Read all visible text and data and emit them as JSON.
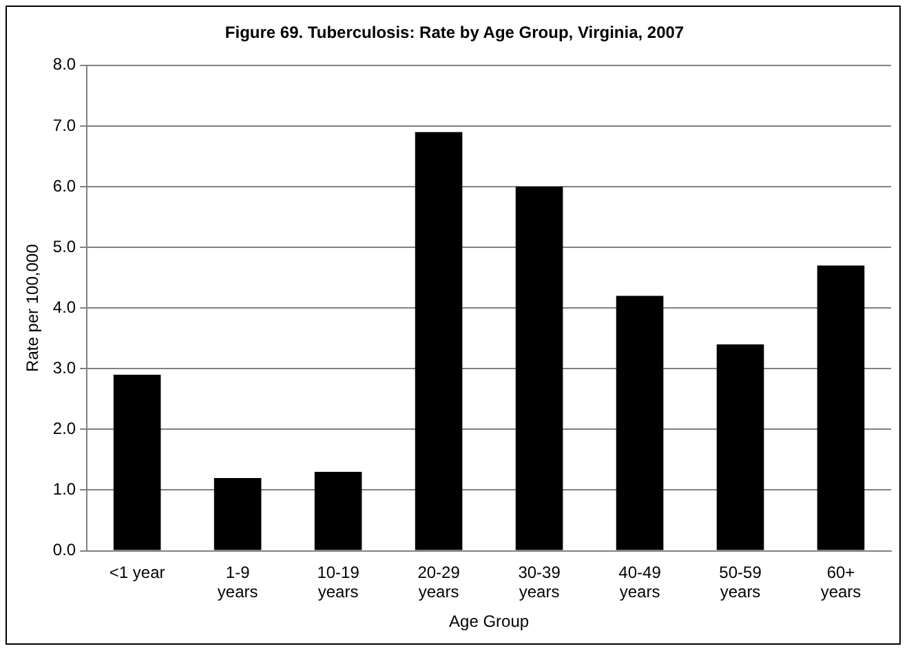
{
  "chart_data": {
    "type": "bar",
    "title": "Figure 69. Tuberculosis: Rate by Age Group, Virginia, 2007",
    "xlabel": "Age Group",
    "ylabel": "Rate per 100,000",
    "categories": [
      "<1 year",
      "1-9 years",
      "10-19 years",
      "20-29 years",
      "30-39 years",
      "40-49 years",
      "50-59 years",
      "60+ years"
    ],
    "values": [
      2.9,
      1.2,
      1.3,
      6.9,
      6.0,
      4.2,
      3.4,
      4.7
    ],
    "color": "#000000",
    "ylim": [
      0,
      8
    ],
    "yticks": [
      {
        "value": 0,
        "label": "0.0"
      },
      {
        "value": 1,
        "label": "1.0"
      },
      {
        "value": 2,
        "label": "2.0"
      },
      {
        "value": 3,
        "label": "3.0"
      },
      {
        "value": 4,
        "label": "4.0"
      },
      {
        "value": 5,
        "label": "5.0"
      },
      {
        "value": 6,
        "label": "6.0"
      },
      {
        "value": 7,
        "label": "7.0"
      },
      {
        "value": 8,
        "label": "8.0"
      }
    ],
    "grid": "y",
    "legend": false
  }
}
